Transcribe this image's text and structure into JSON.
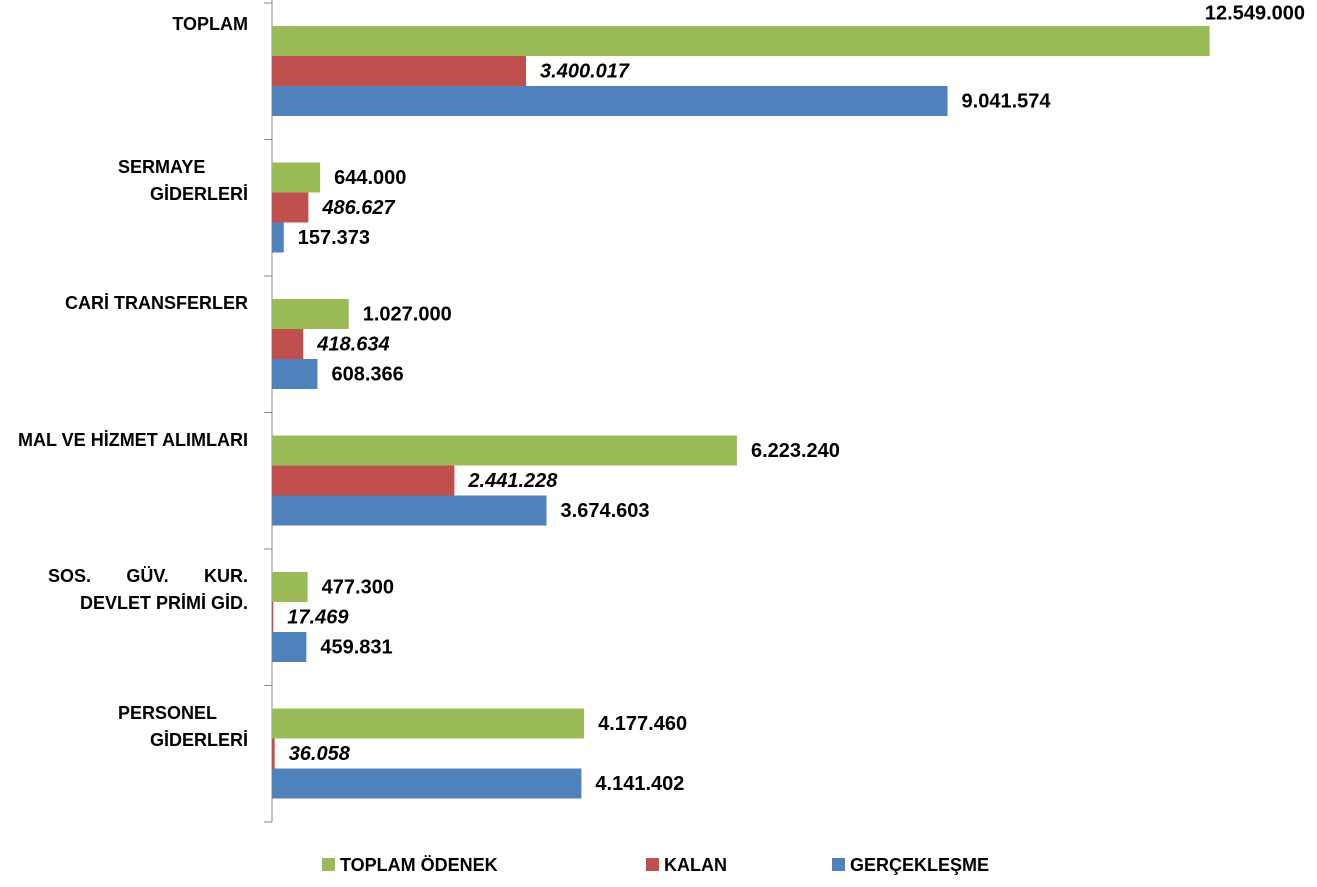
{
  "chart_data": {
    "type": "bar",
    "orientation": "horizontal",
    "categories": [
      "TOPLAM",
      "SERMAYE GİDERLERİ",
      "CARİ TRANSFERLER",
      "MAL VE HİZMET ALIMLARI",
      "SOS. GÜV. KUR. DEVLET PRİMİ GİD.",
      "PERSONEL GİDERLERİ"
    ],
    "series": [
      {
        "name": "TOPLAM ÖDENEK",
        "color": "#9bbb59",
        "values": [
          12549000,
          644000,
          1027000,
          6223240,
          477300,
          4177460
        ],
        "value_labels": [
          "12.549.000",
          "644.000",
          "1.027.000",
          "6.223.240",
          "477.300",
          "4.177.460"
        ]
      },
      {
        "name": "KALAN",
        "color": "#c0504d",
        "values": [
          3400017,
          486627,
          418634,
          2441228,
          17469,
          36058
        ],
        "value_labels": [
          "3.400.017",
          "486.627",
          "418.634",
          "2.441.228",
          "17.469",
          "36.058"
        ]
      },
      {
        "name": "GERÇEKLEŞME",
        "color": "#4f81bd",
        "values": [
          9041574,
          157373,
          608366,
          3674603,
          459831,
          4141402
        ],
        "value_labels": [
          "9.041.574",
          "157.373",
          "608.366",
          "3.674.603",
          "459.831",
          "4.141.402"
        ]
      }
    ],
    "xlim": [
      0,
      14000000
    ],
    "legend": "bottom"
  }
}
